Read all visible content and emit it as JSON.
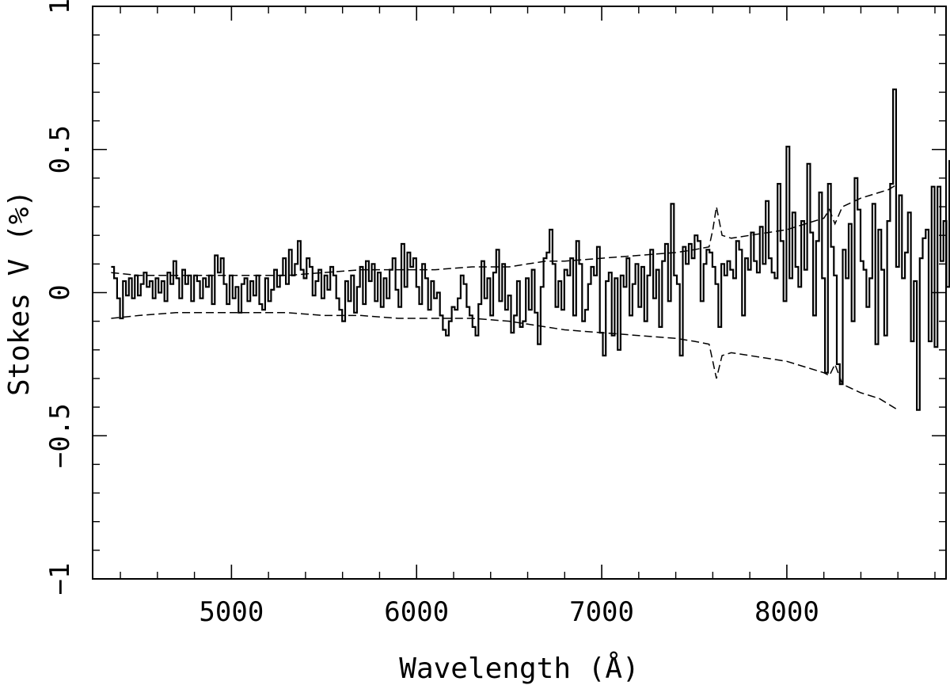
{
  "chart_data": {
    "type": "line",
    "title": "",
    "xlabel": "Wavelength (Å)",
    "ylabel": "Stokes V (%)",
    "xlim": [
      4250,
      8860
    ],
    "ylim": [
      -1,
      1
    ],
    "x_ticks": [
      5000,
      6000,
      7000,
      8000
    ],
    "x_tick_labels": [
      "5000",
      "6000",
      "7000",
      "8000"
    ],
    "y_ticks": [
      -1,
      -0.5,
      0,
      0.5,
      1
    ],
    "y_tick_labels": [
      "−1",
      "−0.5",
      "0",
      "0.5",
      "1"
    ],
    "grid": false,
    "legend": "none",
    "series": [
      {
        "style": "histogram",
        "color": "#000000",
        "bin_start": 4350,
        "bin_width": 16,
        "values": [
          0.09,
          0.05,
          -0.02,
          -0.09,
          0.04,
          -0.01,
          0.05,
          -0.02,
          0.06,
          -0.01,
          0.03,
          0.07,
          0.02,
          0.04,
          -0.02,
          0.05,
          0.0,
          0.04,
          -0.03,
          0.07,
          0.03,
          0.11,
          0.05,
          -0.02,
          0.08,
          0.03,
          0.06,
          -0.03,
          0.06,
          0.04,
          -0.02,
          0.05,
          0.02,
          0.06,
          -0.04,
          0.13,
          0.07,
          0.12,
          0.03,
          -0.04,
          0.06,
          -0.02,
          0.02,
          -0.07,
          0.03,
          0.05,
          -0.03,
          0.04,
          -0.01,
          0.06,
          -0.04,
          -0.06,
          0.05,
          -0.03,
          0.01,
          0.08,
          0.02,
          0.06,
          0.12,
          0.03,
          0.15,
          0.06,
          0.1,
          0.18,
          0.08,
          0.05,
          0.12,
          0.09,
          -0.01,
          0.04,
          0.08,
          -0.02,
          0.06,
          0.01,
          0.09,
          0.06,
          -0.02,
          -0.06,
          -0.1,
          0.04,
          -0.03,
          0.06,
          -0.07,
          0.02,
          0.09,
          -0.04,
          0.11,
          0.04,
          0.1,
          -0.03,
          0.07,
          -0.05,
          0.05,
          -0.02,
          0.08,
          0.12,
          0.01,
          -0.05,
          0.17,
          0.02,
          0.14,
          0.09,
          0.12,
          0.02,
          -0.04,
          0.1,
          0.05,
          -0.06,
          0.04,
          -0.02,
          0.0,
          -0.08,
          -0.13,
          -0.15,
          -0.1,
          -0.05,
          -0.06,
          -0.02,
          0.06,
          0.03,
          -0.05,
          -0.08,
          -0.12,
          -0.15,
          -0.04,
          0.11,
          -0.02,
          0.05,
          -0.08,
          0.07,
          0.15,
          -0.03,
          0.1,
          -0.06,
          -0.01,
          -0.14,
          -0.08,
          0.04,
          -0.12,
          -0.1,
          0.05,
          -0.06,
          0.08,
          -0.07,
          -0.18,
          0.02,
          0.12,
          0.14,
          0.22,
          0.1,
          -0.05,
          0.04,
          -0.06,
          0.08,
          0.06,
          0.12,
          -0.08,
          0.18,
          0.1,
          -0.1,
          -0.06,
          0.03,
          0.09,
          0.06,
          0.16,
          -0.14,
          -0.22,
          0.04,
          0.07,
          -0.15,
          0.05,
          -0.2,
          0.06,
          0.02,
          0.12,
          -0.08,
          0.03,
          0.1,
          -0.05,
          0.09,
          -0.1,
          0.06,
          0.15,
          -0.02,
          0.08,
          -0.12,
          0.11,
          0.17,
          -0.03,
          0.31,
          0.06,
          0.03,
          -0.22,
          0.16,
          0.1,
          0.17,
          0.12,
          0.2,
          0.18,
          -0.03,
          0.1,
          0.15,
          0.14,
          0.09,
          0.03,
          -0.12,
          0.1,
          0.06,
          0.11,
          0.08,
          0.05,
          0.18,
          0.15,
          -0.08,
          0.12,
          0.08,
          0.21,
          0.11,
          0.07,
          0.23,
          0.1,
          0.32,
          0.12,
          0.07,
          0.05,
          0.38,
          0.18,
          -0.03,
          0.51,
          0.05,
          0.28,
          0.09,
          0.02,
          0.25,
          0.08,
          0.45,
          0.21,
          -0.08,
          0.18,
          0.35,
          0.05,
          -0.28,
          0.38,
          0.16,
          0.06,
          -0.25,
          -0.32,
          0.15,
          0.05,
          0.24,
          -0.1,
          0.4,
          0.29,
          0.11,
          0.08,
          -0.05,
          0.05,
          0.31,
          -0.18,
          0.22,
          0.08,
          -0.15,
          0.25,
          0.38,
          0.71,
          0.09,
          0.34,
          0.05,
          0.14,
          0.28,
          -0.17,
          0.04,
          -0.41,
          0.12,
          0.19,
          0.22,
          -0.17,
          0.37,
          -0.19,
          0.37,
          0.11,
          0.25,
          0.02,
          0.46,
          0.09,
          0.28,
          0.15,
          0.07,
          0.18,
          0.25,
          -0.26,
          0.1,
          0.24,
          -0.28,
          0.55,
          0.14,
          0.06,
          0.32,
          0.03,
          0.21,
          -0.15,
          0.08,
          -0.22,
          -0.13,
          0.03,
          0.08,
          0.12,
          0.38,
          0.18,
          0.05,
          0.54,
          0.33,
          0.2,
          0.03,
          0.35,
          0.12,
          0.43,
          0.08,
          -0.2,
          -0.25,
          -0.42,
          -0.36,
          0.1,
          0.72,
          0.55,
          0.15,
          0.28,
          0.56,
          0.35
        ]
      },
      {
        "style": "dashed",
        "color": "#000000",
        "x": [
          4350,
          4500,
          4700,
          4900,
          5100,
          5300,
          5500,
          5700,
          5900,
          6100,
          6300,
          6500,
          6600,
          6700,
          6800,
          7000,
          7200,
          7400,
          7500,
          7580,
          7600,
          7620,
          7650,
          7700,
          7800,
          7900,
          8000,
          8100,
          8200,
          8230,
          8260,
          8300,
          8400,
          8450,
          8500,
          8550,
          8600
        ],
        "y": [
          0.07,
          0.06,
          0.06,
          0.06,
          0.06,
          0.06,
          0.07,
          0.08,
          0.08,
          0.08,
          0.09,
          0.09,
          0.1,
          0.11,
          0.11,
          0.12,
          0.13,
          0.14,
          0.15,
          0.16,
          0.22,
          0.3,
          0.2,
          0.19,
          0.2,
          0.21,
          0.22,
          0.24,
          0.26,
          0.29,
          0.24,
          0.3,
          0.33,
          0.34,
          0.35,
          0.36,
          0.38
        ]
      },
      {
        "style": "dashed",
        "color": "#000000",
        "x": [
          4350,
          4500,
          4700,
          4900,
          5100,
          5300,
          5500,
          5700,
          5900,
          6100,
          6300,
          6500,
          6600,
          6700,
          6800,
          7000,
          7200,
          7400,
          7500,
          7580,
          7600,
          7620,
          7650,
          7700,
          7800,
          7900,
          8000,
          8100,
          8200,
          8230,
          8260,
          8300,
          8400,
          8450,
          8500,
          8550,
          8600
        ],
        "y": [
          -0.09,
          -0.08,
          -0.07,
          -0.07,
          -0.07,
          -0.07,
          -0.08,
          -0.08,
          -0.09,
          -0.09,
          -0.09,
          -0.1,
          -0.11,
          -0.12,
          -0.13,
          -0.14,
          -0.15,
          -0.16,
          -0.17,
          -0.18,
          -0.24,
          -0.3,
          -0.22,
          -0.21,
          -0.22,
          -0.23,
          -0.24,
          -0.26,
          -0.28,
          -0.29,
          -0.25,
          -0.32,
          -0.35,
          -0.36,
          -0.37,
          -0.39,
          -0.41
        ]
      }
    ]
  }
}
